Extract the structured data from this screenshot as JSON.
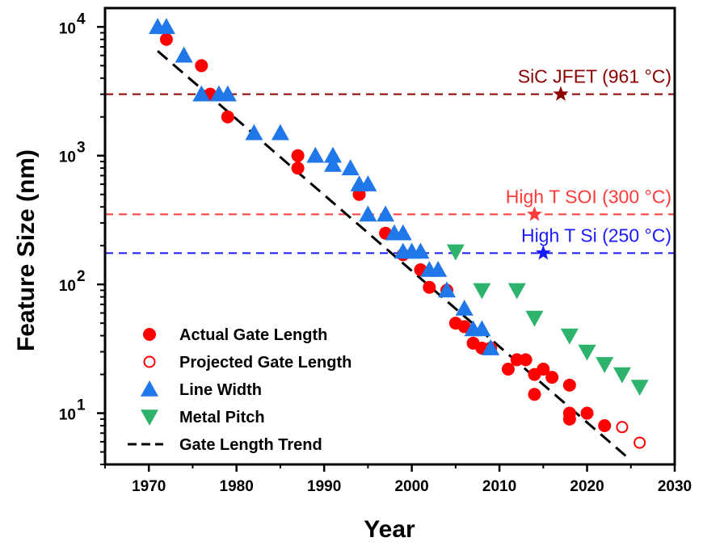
{
  "chart_data": {
    "type": "scatter",
    "xlabel": "Year",
    "ylabel": "Feature Size (nm)",
    "xlim": [
      1965,
      2030
    ],
    "ylim": [
      4,
      14000
    ],
    "y_scale": "log",
    "grid": false,
    "x_ticks": [
      1970,
      1980,
      1990,
      2000,
      2010,
      2020,
      2030
    ],
    "y_ticks": [
      {
        "value": 10,
        "base": "10",
        "exp": "1"
      },
      {
        "value": 100,
        "base": "10",
        "exp": "2"
      },
      {
        "value": 1000,
        "base": "10",
        "exp": "3"
      },
      {
        "value": 10000,
        "base": "10",
        "exp": "4"
      }
    ],
    "legend_position": "bottom-left",
    "series": [
      {
        "name": "Actual Gate Length",
        "marker": "circle-filled",
        "color": "#ff0000",
        "points": [
          [
            1972,
            8000
          ],
          [
            1976,
            5000
          ],
          [
            1977,
            3000
          ],
          [
            1979,
            2000
          ],
          [
            1987,
            1000
          ],
          [
            1987,
            800
          ],
          [
            1994,
            500
          ],
          [
            1997,
            250
          ],
          [
            1999,
            170
          ],
          [
            2001,
            130
          ],
          [
            2002,
            95
          ],
          [
            2004,
            90
          ],
          [
            2005,
            50
          ],
          [
            2006,
            47
          ],
          [
            2007,
            35
          ],
          [
            2008,
            32
          ],
          [
            2009,
            32
          ],
          [
            2011,
            22
          ],
          [
            2012,
            26
          ],
          [
            2013,
            26
          ],
          [
            2014,
            14
          ],
          [
            2014,
            20
          ],
          [
            2015,
            22
          ],
          [
            2016,
            19
          ],
          [
            2018,
            16.5
          ],
          [
            2018,
            9
          ],
          [
            2018,
            10
          ],
          [
            2020,
            10
          ],
          [
            2022,
            8
          ]
        ]
      },
      {
        "name": "Projected Gate Length",
        "marker": "circle-open",
        "color": "#ff0000",
        "points": [
          [
            2024,
            7.8
          ],
          [
            2026,
            5.9
          ]
        ]
      },
      {
        "name": "Line Width",
        "marker": "triangle-up",
        "color": "#1f77e8",
        "points": [
          [
            1971,
            10000
          ],
          [
            1972,
            10000
          ],
          [
            1974,
            6000
          ],
          [
            1976,
            3000
          ],
          [
            1978,
            3000
          ],
          [
            1979,
            3000
          ],
          [
            1982,
            1500
          ],
          [
            1985,
            1500
          ],
          [
            1989,
            1000
          ],
          [
            1991,
            850
          ],
          [
            1991,
            1000
          ],
          [
            1993,
            800
          ],
          [
            1994,
            600
          ],
          [
            1995,
            600
          ],
          [
            1995,
            350
          ],
          [
            1997,
            350
          ],
          [
            1998,
            250
          ],
          [
            1999,
            250
          ],
          [
            1999,
            180
          ],
          [
            2000,
            180
          ],
          [
            2001,
            180
          ],
          [
            2002,
            130
          ],
          [
            2003,
            130
          ],
          [
            2004,
            90
          ],
          [
            2006,
            65
          ],
          [
            2007,
            45
          ],
          [
            2008,
            45
          ],
          [
            2009,
            32
          ]
        ]
      },
      {
        "name": "Metal Pitch",
        "marker": "triangle-down",
        "color": "#2db36b",
        "points": [
          [
            2005,
            180
          ],
          [
            2008,
            90
          ],
          [
            2012,
            90
          ],
          [
            2014,
            55
          ],
          [
            2018,
            40
          ],
          [
            2020,
            30
          ],
          [
            2022,
            24
          ],
          [
            2024,
            20
          ],
          [
            2026,
            16
          ]
        ]
      },
      {
        "name": "Gate Length Trend",
        "marker": "dashed-line",
        "color": "#000000",
        "points": [
          [
            1971,
            6500
          ],
          [
            2025,
            4.3
          ]
        ]
      }
    ],
    "reference_lines": [
      {
        "label": "SiC JFET (961 °C)",
        "y": 3000,
        "color": "#8b0000",
        "star_x": 2017
      },
      {
        "label": "High T SOI (300 °C)",
        "y": 350,
        "color": "#ff3b3b",
        "star_x": 2014
      },
      {
        "label": "High T Si (250 °C)",
        "y": 175,
        "color": "#1a1aff",
        "star_x": 2015
      }
    ]
  }
}
